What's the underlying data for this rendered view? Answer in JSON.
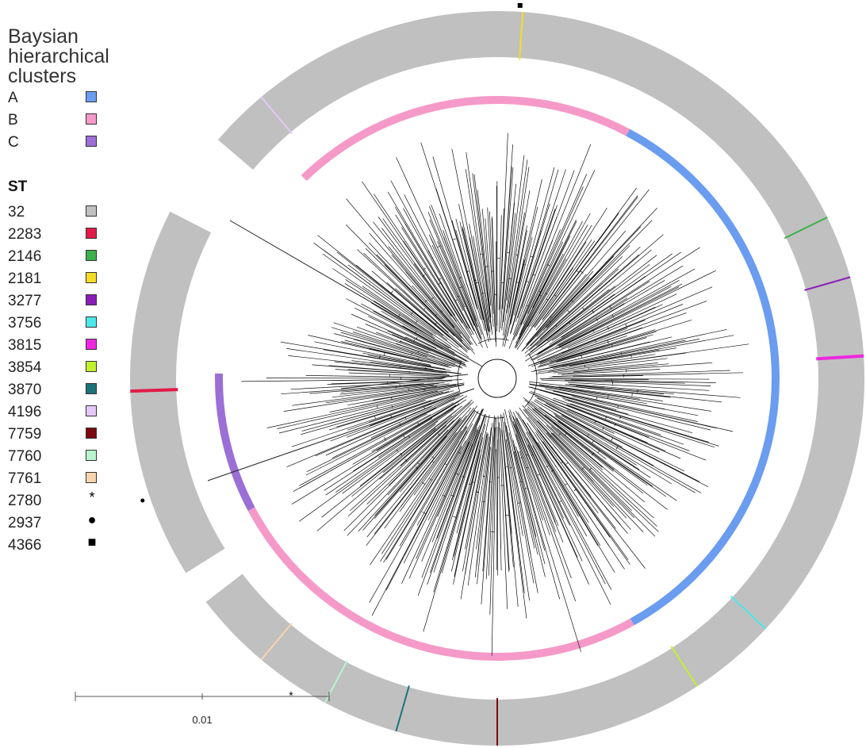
{
  "legend": {
    "cluster_title_lines": [
      "Baysian",
      "hierarchical",
      "clusters"
    ],
    "clusters": [
      {
        "label": "A",
        "color": "#6a9cf0"
      },
      {
        "label": "B",
        "color": "#f59ac8"
      },
      {
        "label": "C",
        "color": "#9b6fd6"
      }
    ],
    "st_title": "ST",
    "st_swatches": [
      {
        "label": "32",
        "color": "#c0c0c0"
      },
      {
        "label": "2283",
        "color": "#e31a47"
      },
      {
        "label": "2146",
        "color": "#3cb04a"
      },
      {
        "label": "2181",
        "color": "#f7dc25"
      },
      {
        "label": "3277",
        "color": "#8a1fb8"
      },
      {
        "label": "3756",
        "color": "#4de8ea"
      },
      {
        "label": "3815",
        "color": "#ee28e0"
      },
      {
        "label": "3854",
        "color": "#c2f02e"
      },
      {
        "label": "3870",
        "color": "#1d7478"
      },
      {
        "label": "4196",
        "color": "#e6c8f7"
      },
      {
        "label": "7759",
        "color": "#7a0a10"
      },
      {
        "label": "7760",
        "color": "#b8f5cf"
      },
      {
        "label": "7761",
        "color": "#f9d4ae"
      }
    ],
    "st_symbols": [
      {
        "label": "2780",
        "symbol": "*"
      },
      {
        "label": "2937",
        "symbol": "●"
      },
      {
        "label": "4366",
        "symbol": "■"
      }
    ]
  },
  "scale_bar": {
    "label": "0.01"
  }
}
